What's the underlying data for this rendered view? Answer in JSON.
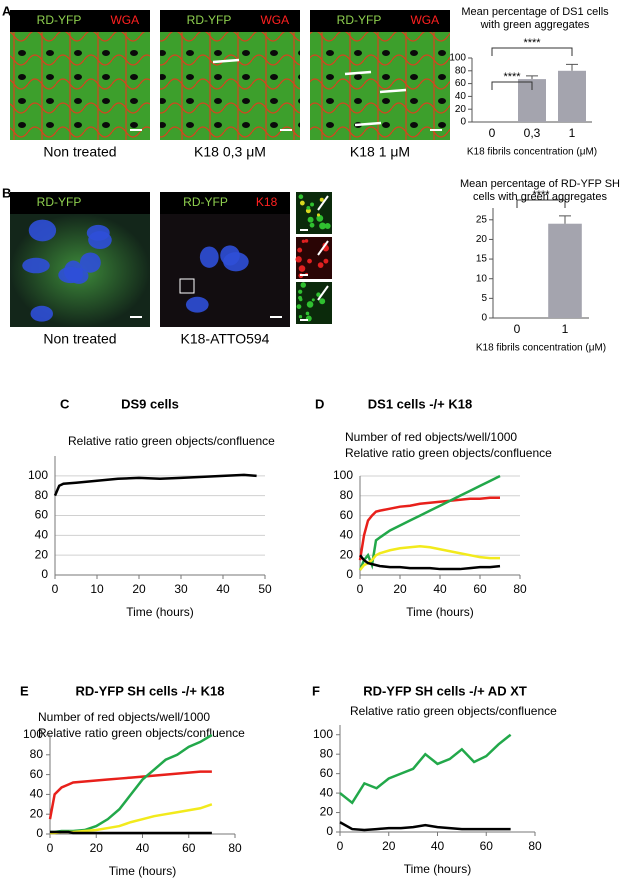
{
  "micrographs": [
    {
      "panel": "A",
      "channels": [
        "RD-YFP",
        "WGA"
      ],
      "caption": "Non treated"
    },
    {
      "channels": [
        "RD-YFP",
        "WGA"
      ],
      "caption": "K18 0,3 μM"
    },
    {
      "channels": [
        "RD-YFP",
        "WGA"
      ],
      "caption": "K18 1 μM"
    },
    {
      "panel": "B",
      "channels": [
        "RD-YFP"
      ],
      "caption": "Non treated"
    },
    {
      "channels": [
        "RD-YFP",
        "K18"
      ],
      "caption": "K18-ATTO594"
    }
  ],
  "chart_data": [
    {
      "type": "bar",
      "title": "Mean percentage of DS1 cells with green aggregates",
      "x_label": "K18 fibrils concentration (μM)",
      "categories": [
        "0",
        "0,3",
        "1"
      ],
      "values": [
        0,
        67,
        80
      ],
      "errors": [
        0,
        5,
        10
      ],
      "color": "#a4a4ae",
      "ylim": [
        0,
        100
      ],
      "yticks": [
        0,
        20,
        40,
        60,
        80,
        100
      ],
      "annotations": [
        "****",
        "****"
      ]
    },
    {
      "type": "bar",
      "title": "Mean percentage of RD-YFP SH cells with green aggregates",
      "x_label": "K18 fibrils concentration (μM)",
      "categories": [
        "0",
        "1"
      ],
      "values": [
        0,
        24
      ],
      "errors": [
        0,
        2
      ],
      "color": "#a4a4ae",
      "ylim": [
        0,
        28
      ],
      "yticks": [
        0,
        5,
        10,
        15,
        20,
        25
      ],
      "annotations": [
        "****"
      ]
    },
    {
      "type": "line",
      "panel": "C",
      "title": "DS9 cells",
      "notes": [
        "Relative ratio green objects/confluence"
      ],
      "x_label": "Time (hours)",
      "x": [
        0,
        1,
        2,
        5,
        10,
        15,
        20,
        25,
        30,
        35,
        40,
        45,
        48
      ],
      "series": [
        {
          "color": "#000000",
          "values": [
            80,
            90,
            92,
            93,
            95,
            97,
            98,
            97,
            98,
            99,
            100,
            101,
            100
          ]
        }
      ],
      "xlim": [
        0,
        50
      ],
      "xticks": [
        0,
        10,
        20,
        30,
        40,
        50
      ],
      "ylim": [
        0,
        120
      ],
      "yticks": [
        0,
        20,
        40,
        60,
        80,
        100
      ],
      "grid": true
    },
    {
      "type": "line",
      "panel": "D",
      "title": "DS1 cells -/+ K18",
      "notes": [
        "Number of red objects/well/1000",
        "Relative ratio green objects/confluence"
      ],
      "x_label": "Time (hours)",
      "x": [
        0,
        2,
        4,
        6,
        8,
        10,
        15,
        20,
        25,
        30,
        35,
        40,
        45,
        50,
        55,
        60,
        65,
        70
      ],
      "series": [
        {
          "color": "#e8201b",
          "values": [
            15,
            40,
            55,
            60,
            64,
            65,
            67,
            69,
            70,
            72,
            73,
            74,
            75,
            76,
            77,
            77,
            78,
            78
          ]
        },
        {
          "color": "#22a84a",
          "values": [
            5,
            15,
            20,
            10,
            35,
            38,
            45,
            50,
            55,
            60,
            65,
            70,
            75,
            80,
            85,
            90,
            95,
            100
          ]
        },
        {
          "color": "#f2ea1c",
          "values": [
            5,
            10,
            12,
            15,
            20,
            22,
            25,
            27,
            28,
            29,
            28,
            26,
            24,
            22,
            20,
            18,
            17,
            17
          ]
        },
        {
          "color": "#000000",
          "values": [
            20,
            15,
            12,
            11,
            10,
            9,
            8,
            8,
            7,
            7,
            7,
            6,
            6,
            6,
            7,
            8,
            8,
            9
          ]
        }
      ],
      "xlim": [
        0,
        80
      ],
      "xticks": [
        0,
        20,
        40,
        60,
        80
      ],
      "ylim": [
        0,
        100
      ],
      "yticks": [
        0,
        20,
        40,
        60,
        80,
        100
      ],
      "grid": true
    },
    {
      "type": "line",
      "panel": "E",
      "title": "RD-YFP SH cells -/+ K18",
      "notes": [
        "Number of red objects/well/1000",
        "Relative ratio green objects/confluence"
      ],
      "x_label": "Time (hours)",
      "x": [
        0,
        2,
        5,
        8,
        10,
        15,
        20,
        25,
        30,
        35,
        40,
        45,
        50,
        55,
        60,
        65,
        70
      ],
      "series": [
        {
          "color": "#e8201b",
          "values": [
            15,
            40,
            47,
            50,
            52,
            53,
            54,
            55,
            56,
            57,
            58,
            59,
            60,
            61,
            62,
            63,
            63
          ]
        },
        {
          "color": "#22a84a",
          "values": [
            2,
            2,
            3,
            3,
            3,
            4,
            8,
            15,
            25,
            40,
            55,
            65,
            75,
            80,
            88,
            93,
            100
          ]
        },
        {
          "color": "#f2ea1c",
          "values": [
            1,
            1,
            2,
            2,
            2,
            3,
            4,
            6,
            8,
            12,
            15,
            18,
            20,
            22,
            24,
            26,
            30
          ]
        },
        {
          "color": "#000000",
          "values": [
            2,
            2,
            2,
            2,
            1,
            1,
            1,
            1,
            1,
            1,
            1,
            1,
            1,
            1,
            1,
            1,
            1
          ]
        }
      ],
      "xlim": [
        0,
        80
      ],
      "xticks": [
        0,
        20,
        40,
        60,
        80
      ],
      "ylim": [
        0,
        100
      ],
      "yticks": [
        0,
        20,
        40,
        60,
        80,
        100
      ],
      "grid": false
    },
    {
      "type": "line",
      "panel": "F",
      "title": "RD-YFP SH cells -/+ AD XT",
      "notes": [
        "Relative ratio green objects/confluence"
      ],
      "x_label": "Time (hours)",
      "x": [
        0,
        5,
        10,
        15,
        20,
        25,
        30,
        35,
        40,
        45,
        50,
        55,
        60,
        65,
        70
      ],
      "series": [
        {
          "color": "#22a84a",
          "values": [
            40,
            30,
            50,
            45,
            55,
            60,
            65,
            80,
            70,
            75,
            85,
            72,
            78,
            90,
            100
          ]
        },
        {
          "color": "#000000",
          "values": [
            10,
            3,
            2,
            3,
            4,
            4,
            5,
            7,
            5,
            4,
            3,
            3,
            3,
            3,
            3
          ]
        }
      ],
      "xlim": [
        0,
        80
      ],
      "xticks": [
        0,
        20,
        40,
        60,
        80
      ],
      "ylim": [
        0,
        110
      ],
      "yticks": [
        0,
        20,
        40,
        60,
        80,
        100
      ],
      "grid": false
    }
  ]
}
